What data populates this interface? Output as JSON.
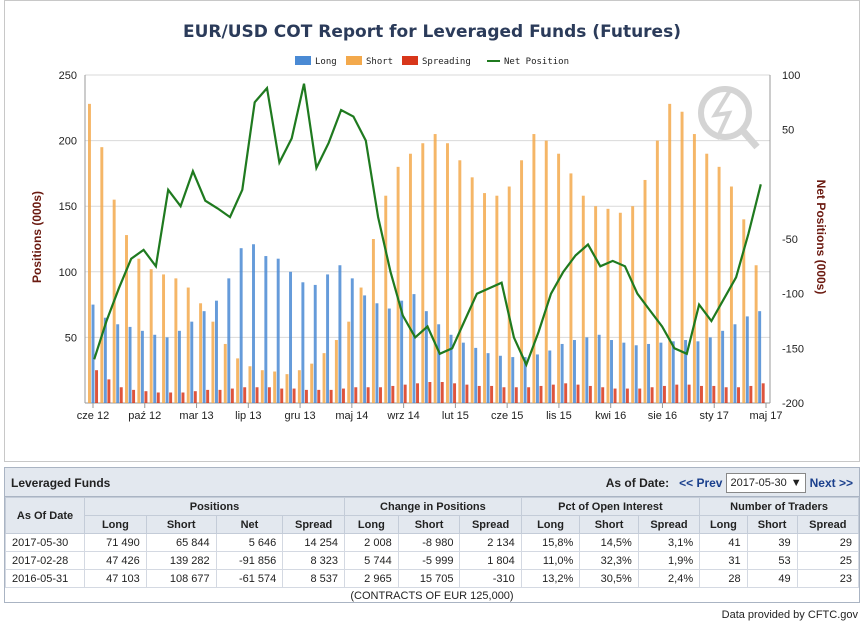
{
  "chart_data": {
    "type": "bar",
    "title": "EUR/USD COT Report for Leveraged Funds (Futures)",
    "legend": [
      "Long",
      "Short",
      "Spreading",
      "Net Position"
    ],
    "legend_placement": "top-center",
    "ylabel_left": "Positions (000s)",
    "ylabel_right": "Net Positions (000s)",
    "ylim_left": [
      0,
      250
    ],
    "ylim_right": [
      -200,
      100
    ],
    "yticks_left": [
      "250",
      "200",
      "150",
      "100",
      "50"
    ],
    "yticks_right": [
      "100",
      "50",
      "-50",
      "-100",
      "-150",
      "-200"
    ],
    "xticks": [
      "cze 12",
      "paź 12",
      "mar 13",
      "lip 13",
      "gru 13",
      "maj 14",
      "wrz 14",
      "lut 15",
      "cze 15",
      "lis 15",
      "kwi 16",
      "sie 16",
      "sty 17",
      "maj 17"
    ],
    "grid": true,
    "colors": {
      "long": "#4a8ad4",
      "short": "#f3a94c",
      "spreading": "#d8361a",
      "net": "#1f7a1f"
    },
    "series": [
      {
        "name": "Long",
        "values": [
          75,
          65,
          60,
          58,
          55,
          52,
          50,
          55,
          62,
          70,
          78,
          95,
          118,
          121,
          112,
          110,
          100,
          92,
          90,
          98,
          105,
          95,
          82,
          76,
          72,
          78,
          83,
          70,
          60,
          52,
          46,
          42,
          38,
          36,
          35,
          35,
          37,
          40,
          45,
          48,
          50,
          52,
          48,
          46,
          44,
          45,
          46,
          47,
          48,
          47,
          50,
          55,
          60,
          66,
          70
        ]
      },
      {
        "name": "Short",
        "values": [
          228,
          195,
          155,
          128,
          110,
          102,
          98,
          95,
          88,
          76,
          62,
          45,
          34,
          28,
          25,
          24,
          22,
          25,
          30,
          38,
          48,
          62,
          88,
          125,
          158,
          180,
          190,
          198,
          205,
          198,
          185,
          172,
          160,
          158,
          165,
          185,
          205,
          200,
          190,
          175,
          158,
          150,
          148,
          145,
          150,
          170,
          200,
          228,
          222,
          205,
          190,
          180,
          165,
          140,
          105
        ]
      },
      {
        "name": "Spreading",
        "values": [
          25,
          18,
          12,
          10,
          9,
          8,
          8,
          8,
          9,
          10,
          10,
          11,
          12,
          12,
          12,
          11,
          11,
          10,
          10,
          10,
          11,
          12,
          12,
          12,
          13,
          14,
          15,
          16,
          16,
          15,
          14,
          13,
          13,
          12,
          12,
          12,
          13,
          14,
          15,
          14,
          13,
          12,
          11,
          11,
          11,
          12,
          13,
          14,
          14,
          13,
          13,
          12,
          12,
          13,
          15
        ]
      },
      {
        "name": "Net Position",
        "values": [
          -160,
          -125,
          -95,
          -68,
          -60,
          -75,
          -5,
          -20,
          12,
          -15,
          -22,
          -30,
          -5,
          75,
          88,
          20,
          42,
          92,
          15,
          38,
          68,
          62,
          40,
          -30,
          -80,
          -120,
          -140,
          -130,
          -155,
          -150,
          -125,
          -100,
          -95,
          -90,
          -140,
          -165,
          -135,
          -100,
          -80,
          -65,
          -55,
          -75,
          -70,
          -75,
          -100,
          -115,
          -130,
          -150,
          -155,
          -110,
          -125,
          -105,
          -85,
          -45,
          0
        ]
      }
    ]
  },
  "table": {
    "title": "Leveraged Funds",
    "as_of_label": "As of Date:",
    "prev_label": "<< Prev",
    "selected_date": "2017-05-30",
    "next_label": "Next >>",
    "group_headers": [
      "As Of Date",
      "Positions",
      "Change in Positions",
      "Pct of Open Interest",
      "Number of Traders"
    ],
    "sub_headers": [
      "Long",
      "Short",
      "Net",
      "Spread",
      "Long",
      "Short",
      "Spread",
      "Long",
      "Short",
      "Spread",
      "Long",
      "Short",
      "Spread"
    ],
    "rows": [
      {
        "date": "2017-05-30",
        "pos_long": "71 490",
        "pos_short": "65 844",
        "pos_net": "5 646",
        "pos_spread": "14 254",
        "chg_long": "2 008",
        "chg_short": "-8 980",
        "chg_spread": "2 134",
        "pct_long": "15,8%",
        "pct_short": "14,5%",
        "pct_spread": "3,1%",
        "tr_long": "41",
        "tr_short": "39",
        "tr_spread": "29"
      },
      {
        "date": "2017-02-28",
        "pos_long": "47 426",
        "pos_short": "139 282",
        "pos_net": "-91 856",
        "pos_spread": "8 323",
        "chg_long": "5 744",
        "chg_short": "-5 999",
        "chg_spread": "1 804",
        "pct_long": "11,0%",
        "pct_short": "32,3%",
        "pct_spread": "1,9%",
        "tr_long": "31",
        "tr_short": "53",
        "tr_spread": "25"
      },
      {
        "date": "2016-05-31",
        "pos_long": "47 103",
        "pos_short": "108 677",
        "pos_net": "-61 574",
        "pos_spread": "8 537",
        "chg_long": "2 965",
        "chg_short": "15 705",
        "chg_spread": "-310",
        "pct_long": "13,2%",
        "pct_short": "30,5%",
        "pct_spread": "2,4%",
        "tr_long": "28",
        "tr_short": "49",
        "tr_spread": "23"
      }
    ],
    "footnote": "(CONTRACTS OF EUR 125,000)"
  },
  "footer": {
    "provided_label": "Data provided by",
    "provider": "CFTC.gov"
  },
  "icons": {
    "dropdown": "chevron-down-icon",
    "watermark": "lightning-magnifier-logo"
  }
}
